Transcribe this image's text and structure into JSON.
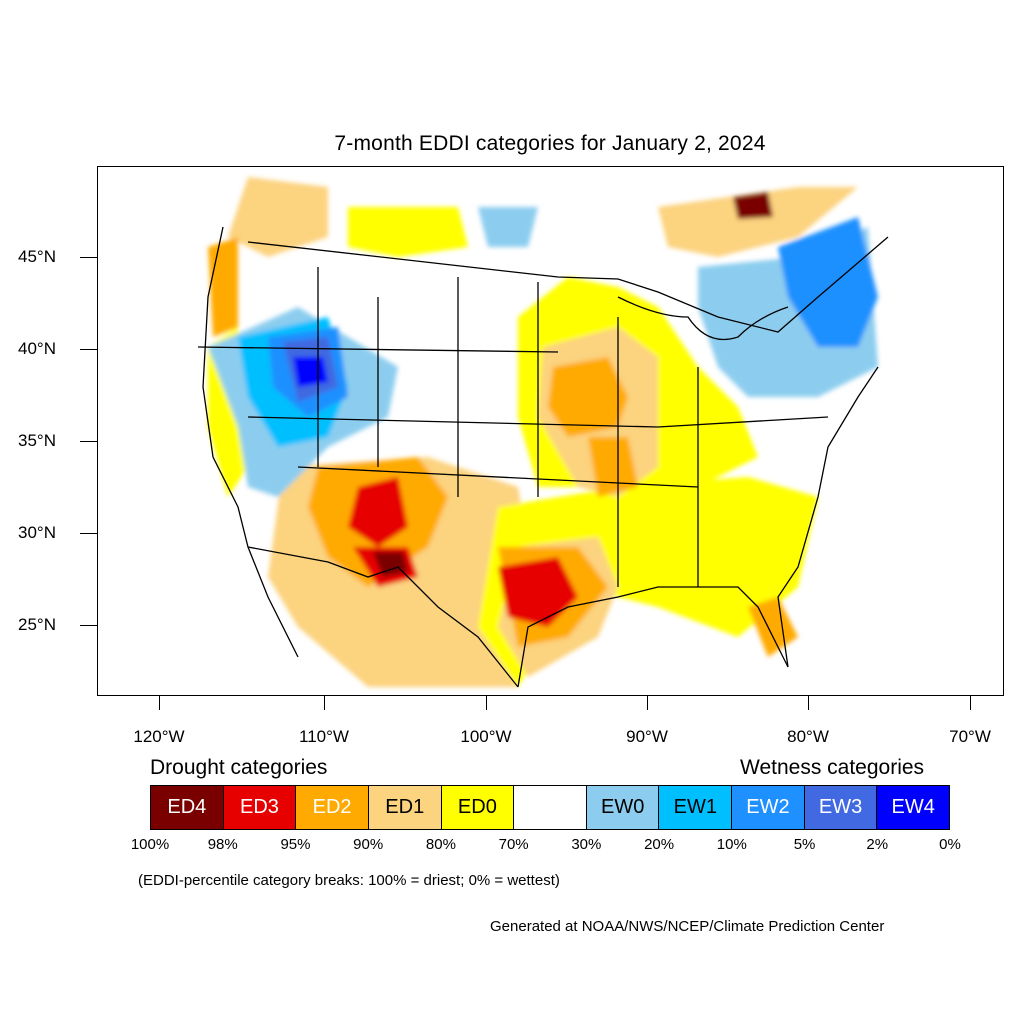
{
  "title": "7-month EDDI categories for January 2, 2024",
  "axes": {
    "lat_labels": [
      "45°N",
      "40°N",
      "35°N",
      "30°N",
      "25°N"
    ],
    "lon_labels": [
      "120°W",
      "110°W",
      "100°W",
      "90°W",
      "80°W",
      "70°W"
    ]
  },
  "legend": {
    "drought_heading": "Drought categories",
    "wetness_heading": "Wetness categories",
    "categories": [
      {
        "label": "ED4",
        "color": "#7a0000",
        "text_color": "#ffffff"
      },
      {
        "label": "ED3",
        "color": "#e60000",
        "text_color": "#ffffff"
      },
      {
        "label": "ED2",
        "color": "#ffaa00",
        "text_color": "#ffffff"
      },
      {
        "label": "ED1",
        "color": "#fcd37f",
        "text_color": "#000000"
      },
      {
        "label": "ED0",
        "color": "#ffff00",
        "text_color": "#000000"
      },
      {
        "label": "",
        "color": "#ffffff",
        "text_color": "#000000"
      },
      {
        "label": "EW0",
        "color": "#8ccdef",
        "text_color": "#000000"
      },
      {
        "label": "EW1",
        "color": "#00bfff",
        "text_color": "#000000"
      },
      {
        "label": "EW2",
        "color": "#1e90ff",
        "text_color": "#ffffff"
      },
      {
        "label": "EW3",
        "color": "#4169e1",
        "text_color": "#ffffff"
      },
      {
        "label": "EW4",
        "color": "#0000ff",
        "text_color": "#ffffff"
      }
    ],
    "breaks": [
      "100%",
      "98%",
      "95%",
      "90%",
      "80%",
      "70%",
      "30%",
      "20%",
      "10%",
      "5%",
      "2%",
      "0%"
    ]
  },
  "note": "(EDDI-percentile category breaks: 100% = driest; 0% = wettest)",
  "credit": "Generated at NOAA/NWS/NCEP/Climate Prediction Center"
}
